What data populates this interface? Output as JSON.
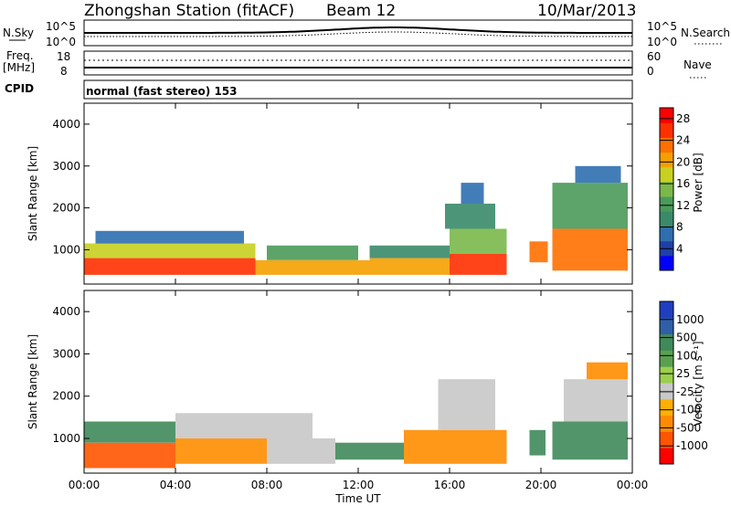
{
  "header": {
    "station": "Zhongshan Station (fitACF)",
    "beam": "Beam 12",
    "date": "10/Mar/2013"
  },
  "noise_panel": {
    "left_label": "N.Sky",
    "left_ticks": [
      "10^5",
      "10^0"
    ],
    "right_label": "N.Search",
    "right_ticks": [
      "10^5",
      "10^0"
    ]
  },
  "freq_panel": {
    "left_label_1": "Freq.",
    "left_label_2": "[MHz]",
    "left_ticks": [
      "18",
      "8"
    ],
    "right_label": "Nave",
    "right_ticks": [
      "60",
      "0"
    ]
  },
  "cpid": {
    "label": "CPID",
    "value": "normal (fast stereo) 153"
  },
  "colors": {
    "power": [
      "#0000ff",
      "#1f3fa8",
      "#2f6fb0",
      "#3a8a6a",
      "#4a9a5a",
      "#7ab84a",
      "#c8d020",
      "#f5a000",
      "#ff7000",
      "#ff3000",
      "#ff0000"
    ],
    "velocity": [
      "#ff0000",
      "#ff5500",
      "#ff8c00",
      "#ffb000",
      "#c8c8c8",
      "#9bd04b",
      "#5aa050",
      "#3f8a5a",
      "#2f5fa8",
      "#1f3fc0"
    ]
  },
  "chart_data": [
    {
      "type": "heatmap",
      "name": "power",
      "ylabel": "Slant Range [km]",
      "y_ticks": [
        "1000",
        "2000",
        "3000",
        "4000"
      ],
      "ylim": [
        180,
        4500
      ],
      "x_ticks": [
        "00:00",
        "04:00",
        "08:00",
        "12:00",
        "16:00",
        "20:00",
        "00:00"
      ],
      "xlim_hours": [
        0,
        24
      ],
      "colorbar_label": "Power [dB]",
      "colorbar_ticks": [
        "4",
        "8",
        "12",
        "16",
        "20",
        "24",
        "28"
      ],
      "colorbar_range": [
        0,
        30
      ],
      "regions": [
        {
          "t": [
            0.0,
            7.5
          ],
          "r": [
            400,
            800
          ],
          "level": 27
        },
        {
          "t": [
            0.0,
            7.5
          ],
          "r": [
            800,
            1150
          ],
          "level": 18
        },
        {
          "t": [
            0.5,
            7.0
          ],
          "r": [
            1150,
            1450
          ],
          "level": 6
        },
        {
          "t": [
            7.5,
            12.5
          ],
          "r": [
            400,
            750
          ],
          "level": 20
        },
        {
          "t": [
            8.0,
            12.0
          ],
          "r": [
            750,
            1100
          ],
          "level": 12
        },
        {
          "t": [
            12.5,
            16.0
          ],
          "r": [
            400,
            800
          ],
          "level": 22
        },
        {
          "t": [
            12.5,
            16.0
          ],
          "r": [
            800,
            1100
          ],
          "level": 10
        },
        {
          "t": [
            16.0,
            18.5
          ],
          "r": [
            400,
            900
          ],
          "level": 28
        },
        {
          "t": [
            16.0,
            18.5
          ],
          "r": [
            900,
            1500
          ],
          "level": 16
        },
        {
          "t": [
            15.8,
            18.0
          ],
          "r": [
            1500,
            2100
          ],
          "level": 10
        },
        {
          "t": [
            16.5,
            17.5
          ],
          "r": [
            2100,
            2600
          ],
          "level": 6
        },
        {
          "t": [
            19.5,
            20.3
          ],
          "r": [
            700,
            1200
          ],
          "level": 24
        },
        {
          "t": [
            20.5,
            23.8
          ],
          "r": [
            500,
            1500
          ],
          "level": 24
        },
        {
          "t": [
            20.5,
            23.8
          ],
          "r": [
            1500,
            2600
          ],
          "level": 12
        },
        {
          "t": [
            21.5,
            23.5
          ],
          "r": [
            2600,
            3000
          ],
          "level": 6
        }
      ]
    },
    {
      "type": "heatmap",
      "name": "velocity",
      "ylabel": "Slant Range [km]",
      "y_ticks": [
        "1000",
        "2000",
        "3000",
        "4000"
      ],
      "ylim": [
        180,
        4500
      ],
      "x_ticks": [
        "00:00",
        "04:00",
        "08:00",
        "12:00",
        "16:00",
        "20:00",
        "00:00"
      ],
      "xlabel": "Time UT",
      "xlim_hours": [
        0,
        24
      ],
      "colorbar_label": "Velocity [m s⁻¹]",
      "colorbar_ticks": [
        "-1000",
        "-500",
        "-100",
        "-25",
        "25",
        "100",
        "500",
        "1000"
      ],
      "regions": [
        {
          "t": [
            0.0,
            4.0
          ],
          "r": [
            300,
            900
          ],
          "level": -300
        },
        {
          "t": [
            0.0,
            4.0
          ],
          "r": [
            900,
            1400
          ],
          "level": 300
        },
        {
          "t": [
            4.0,
            8.0
          ],
          "r": [
            400,
            1000
          ],
          "level": -200
        },
        {
          "t": [
            4.0,
            10.0
          ],
          "r": [
            1000,
            1600
          ],
          "level": 0
        },
        {
          "t": [
            8.0,
            11.0
          ],
          "r": [
            400,
            1000
          ],
          "level": 0
        },
        {
          "t": [
            11.0,
            14.0
          ],
          "r": [
            500,
            900
          ],
          "level": 250
        },
        {
          "t": [
            14.0,
            18.5
          ],
          "r": [
            400,
            1200
          ],
          "level": -150
        },
        {
          "t": [
            15.5,
            18.0
          ],
          "r": [
            1200,
            2400
          ],
          "level": 0
        },
        {
          "t": [
            19.5,
            20.2
          ],
          "r": [
            600,
            1200
          ],
          "level": 300
        },
        {
          "t": [
            20.5,
            23.8
          ],
          "r": [
            500,
            1400
          ],
          "level": 300
        },
        {
          "t": [
            21.0,
            23.8
          ],
          "r": [
            1400,
            2400
          ],
          "level": 0
        },
        {
          "t": [
            22.0,
            23.8
          ],
          "r": [
            2400,
            2800
          ],
          "level": -150
        }
      ]
    }
  ]
}
